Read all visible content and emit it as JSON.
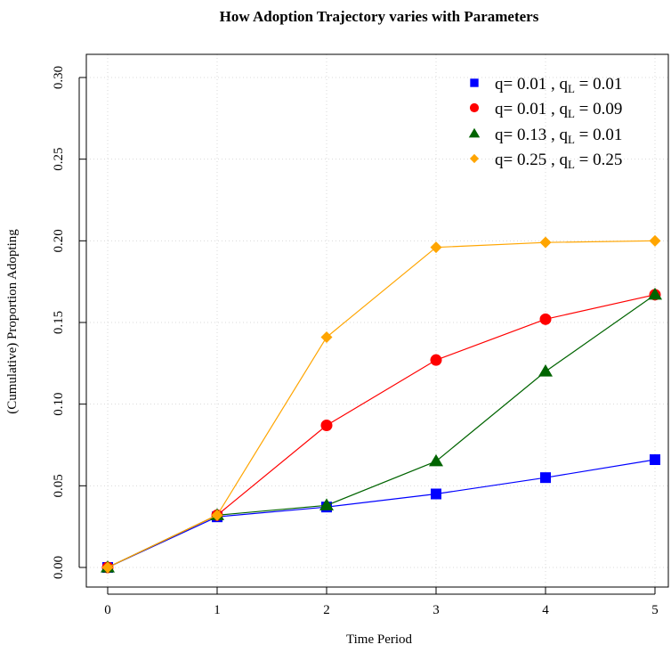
{
  "chart_data": {
    "type": "line",
    "title": "How Adoption Trajectory varies with Parameters",
    "xlabel": "Time Period",
    "ylabel": "(Cumulative) Proportion Adopting",
    "x": [
      0,
      1,
      2,
      3,
      4,
      5
    ],
    "xticks": [
      "0",
      "1",
      "2",
      "3",
      "4",
      "5"
    ],
    "yticks": [
      "0.00",
      "0.05",
      "0.10",
      "0.15",
      "0.20",
      "0.25",
      "0.30"
    ],
    "xlim": [
      0,
      5
    ],
    "ylim": [
      0,
      0.3
    ],
    "grid": true,
    "legend_position": "top-right",
    "series": [
      {
        "name": "q= 0.01 ,  qL =  0.01",
        "q": "q= 0.01 ,  ",
        "qL_main": "q",
        "qL_sub": "L",
        "qL_val": " =  0.01",
        "color": "#0000ff",
        "marker": "square",
        "values": [
          0.0,
          0.031,
          0.037,
          0.045,
          0.055,
          0.066
        ]
      },
      {
        "name": "q= 0.01 ,  qL =  0.09",
        "q": "q= 0.01 ,  ",
        "qL_main": "q",
        "qL_sub": "L",
        "qL_val": " =  0.09",
        "color": "#ff0000",
        "marker": "circle",
        "values": [
          0.0,
          0.032,
          0.087,
          0.127,
          0.152,
          0.167
        ]
      },
      {
        "name": "q= 0.13 ,  qL =  0.01",
        "q": "q= 0.13 ,  ",
        "qL_main": "q",
        "qL_sub": "L",
        "qL_val": " =  0.01",
        "color": "#006400",
        "marker": "triangle",
        "values": [
          0.0,
          0.032,
          0.038,
          0.065,
          0.12,
          0.167
        ]
      },
      {
        "name": "q= 0.25 ,  qL =  0.25",
        "q": "q= 0.25 ,  ",
        "qL_main": "q",
        "qL_sub": "L",
        "qL_val": " =  0.25",
        "color": "#ffa500",
        "marker": "diamond",
        "values": [
          0.0,
          0.032,
          0.141,
          0.196,
          0.199,
          0.2
        ]
      }
    ]
  }
}
